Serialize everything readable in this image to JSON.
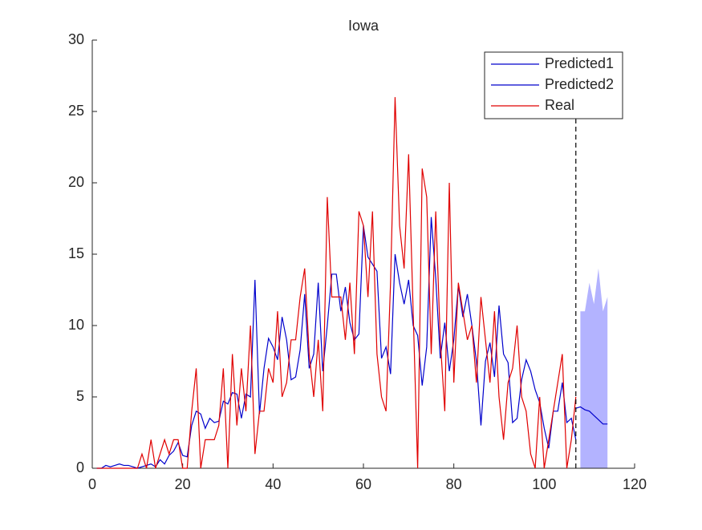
{
  "chart_data": {
    "type": "line",
    "title": "Iowa",
    "x": [
      1,
      2,
      3,
      4,
      5,
      6,
      7,
      8,
      9,
      10,
      11,
      12,
      13,
      14,
      15,
      16,
      17,
      18,
      19,
      20,
      21,
      22,
      23,
      24,
      25,
      26,
      27,
      28,
      29,
      30,
      31,
      32,
      33,
      34,
      35,
      36,
      37,
      38,
      39,
      40,
      41,
      42,
      43,
      44,
      45,
      46,
      47,
      48,
      49,
      50,
      51,
      52,
      53,
      54,
      55,
      56,
      57,
      58,
      59,
      60,
      61,
      62,
      63,
      64,
      65,
      66,
      67,
      68,
      69,
      70,
      71,
      72,
      73,
      74,
      75,
      76,
      77,
      78,
      79,
      80,
      81,
      82,
      83,
      84,
      85,
      86,
      87,
      88,
      89,
      90,
      91,
      92,
      93,
      94,
      95,
      96,
      97,
      98,
      99,
      100,
      101,
      102,
      103,
      104,
      105,
      106,
      107
    ],
    "series": [
      {
        "name": "Predicted1",
        "color": "#0000cc",
        "values": [
          0,
          0,
          0.2,
          0.1,
          0.2,
          0.3,
          0.2,
          0.2,
          0.1,
          0,
          0.1,
          0.2,
          0.3,
          0.1,
          0.6,
          0.3,
          0.9,
          1.2,
          1.8,
          0.9,
          0.8,
          3,
          4,
          3.8,
          2.8,
          3.5,
          3.2,
          3.3,
          4.7,
          4.5,
          5.3,
          5.2,
          3.5,
          5.2,
          5,
          13.2,
          3.8,
          7,
          9.1,
          8.5,
          7.6,
          10.6,
          9,
          6.2,
          6.4,
          8.3,
          12.2,
          7,
          8,
          13,
          6.8,
          10,
          13.6,
          13.6,
          11,
          12.7,
          10.2,
          9,
          9.4,
          17,
          14.8,
          14.3,
          13.8,
          7.7,
          8.5,
          6.6,
          15,
          13,
          11.5,
          13.2,
          10,
          9.3,
          5.8,
          8.5,
          17.6,
          13.3,
          7.7,
          10.2,
          6.8,
          9,
          12.8,
          10.6,
          12.2,
          10,
          7.5,
          3,
          7.5,
          8.8,
          6.4,
          11.4,
          8,
          7.4,
          3.2,
          3.5,
          6.2,
          7.6,
          6.8,
          5.5,
          4.6,
          2.8,
          1.4,
          4,
          4,
          6,
          3.2,
          3.5,
          2
        ]
      },
      {
        "name": "Predicted2",
        "color": "#0000cc",
        "x": [
          107,
          108,
          109,
          110,
          111,
          112,
          113,
          114
        ],
        "values": [
          4.2,
          4.3,
          4.1,
          4,
          3.7,
          3.4,
          3.1,
          3.1
        ]
      },
      {
        "name": "Real",
        "color": "#e00000",
        "values": [
          0,
          0,
          0,
          0,
          0,
          0,
          0,
          0,
          0,
          0,
          1,
          0,
          2,
          0,
          1,
          2,
          1,
          2,
          2,
          0,
          0,
          4,
          7,
          0,
          2,
          2,
          2,
          3,
          7,
          0,
          8,
          3,
          7,
          4,
          10,
          1,
          4,
          4,
          7,
          6,
          11,
          5,
          6,
          9,
          9,
          12,
          14,
          8,
          5,
          9,
          4,
          19,
          12,
          12,
          12,
          9,
          13,
          8,
          18,
          17,
          12,
          18,
          8,
          5,
          4,
          13,
          26,
          17,
          14,
          22,
          11,
          0,
          21,
          19,
          8,
          18,
          9,
          4,
          20,
          6,
          13,
          11,
          9,
          10,
          6,
          12,
          9,
          6,
          11,
          5,
          2,
          6,
          7,
          10,
          5,
          4,
          1,
          0,
          5,
          0,
          2,
          4,
          6,
          8,
          0,
          2,
          5
        ]
      }
    ],
    "band": {
      "color": "#b3b3ff",
      "x": [
        108,
        109,
        110,
        111,
        112,
        113,
        114
      ],
      "upper": [
        11,
        11,
        13,
        11.5,
        14,
        11,
        12
      ],
      "lower": [
        0,
        0,
        0,
        0,
        0,
        0,
        0
      ]
    },
    "vline": 107,
    "xlim": [
      0,
      120
    ],
    "xticks": [
      0,
      20,
      40,
      60,
      80,
      100,
      120
    ],
    "ylim": [
      0,
      30
    ],
    "yticks": [
      0,
      5,
      10,
      15,
      20,
      25,
      30
    ],
    "legend": "northeast"
  }
}
